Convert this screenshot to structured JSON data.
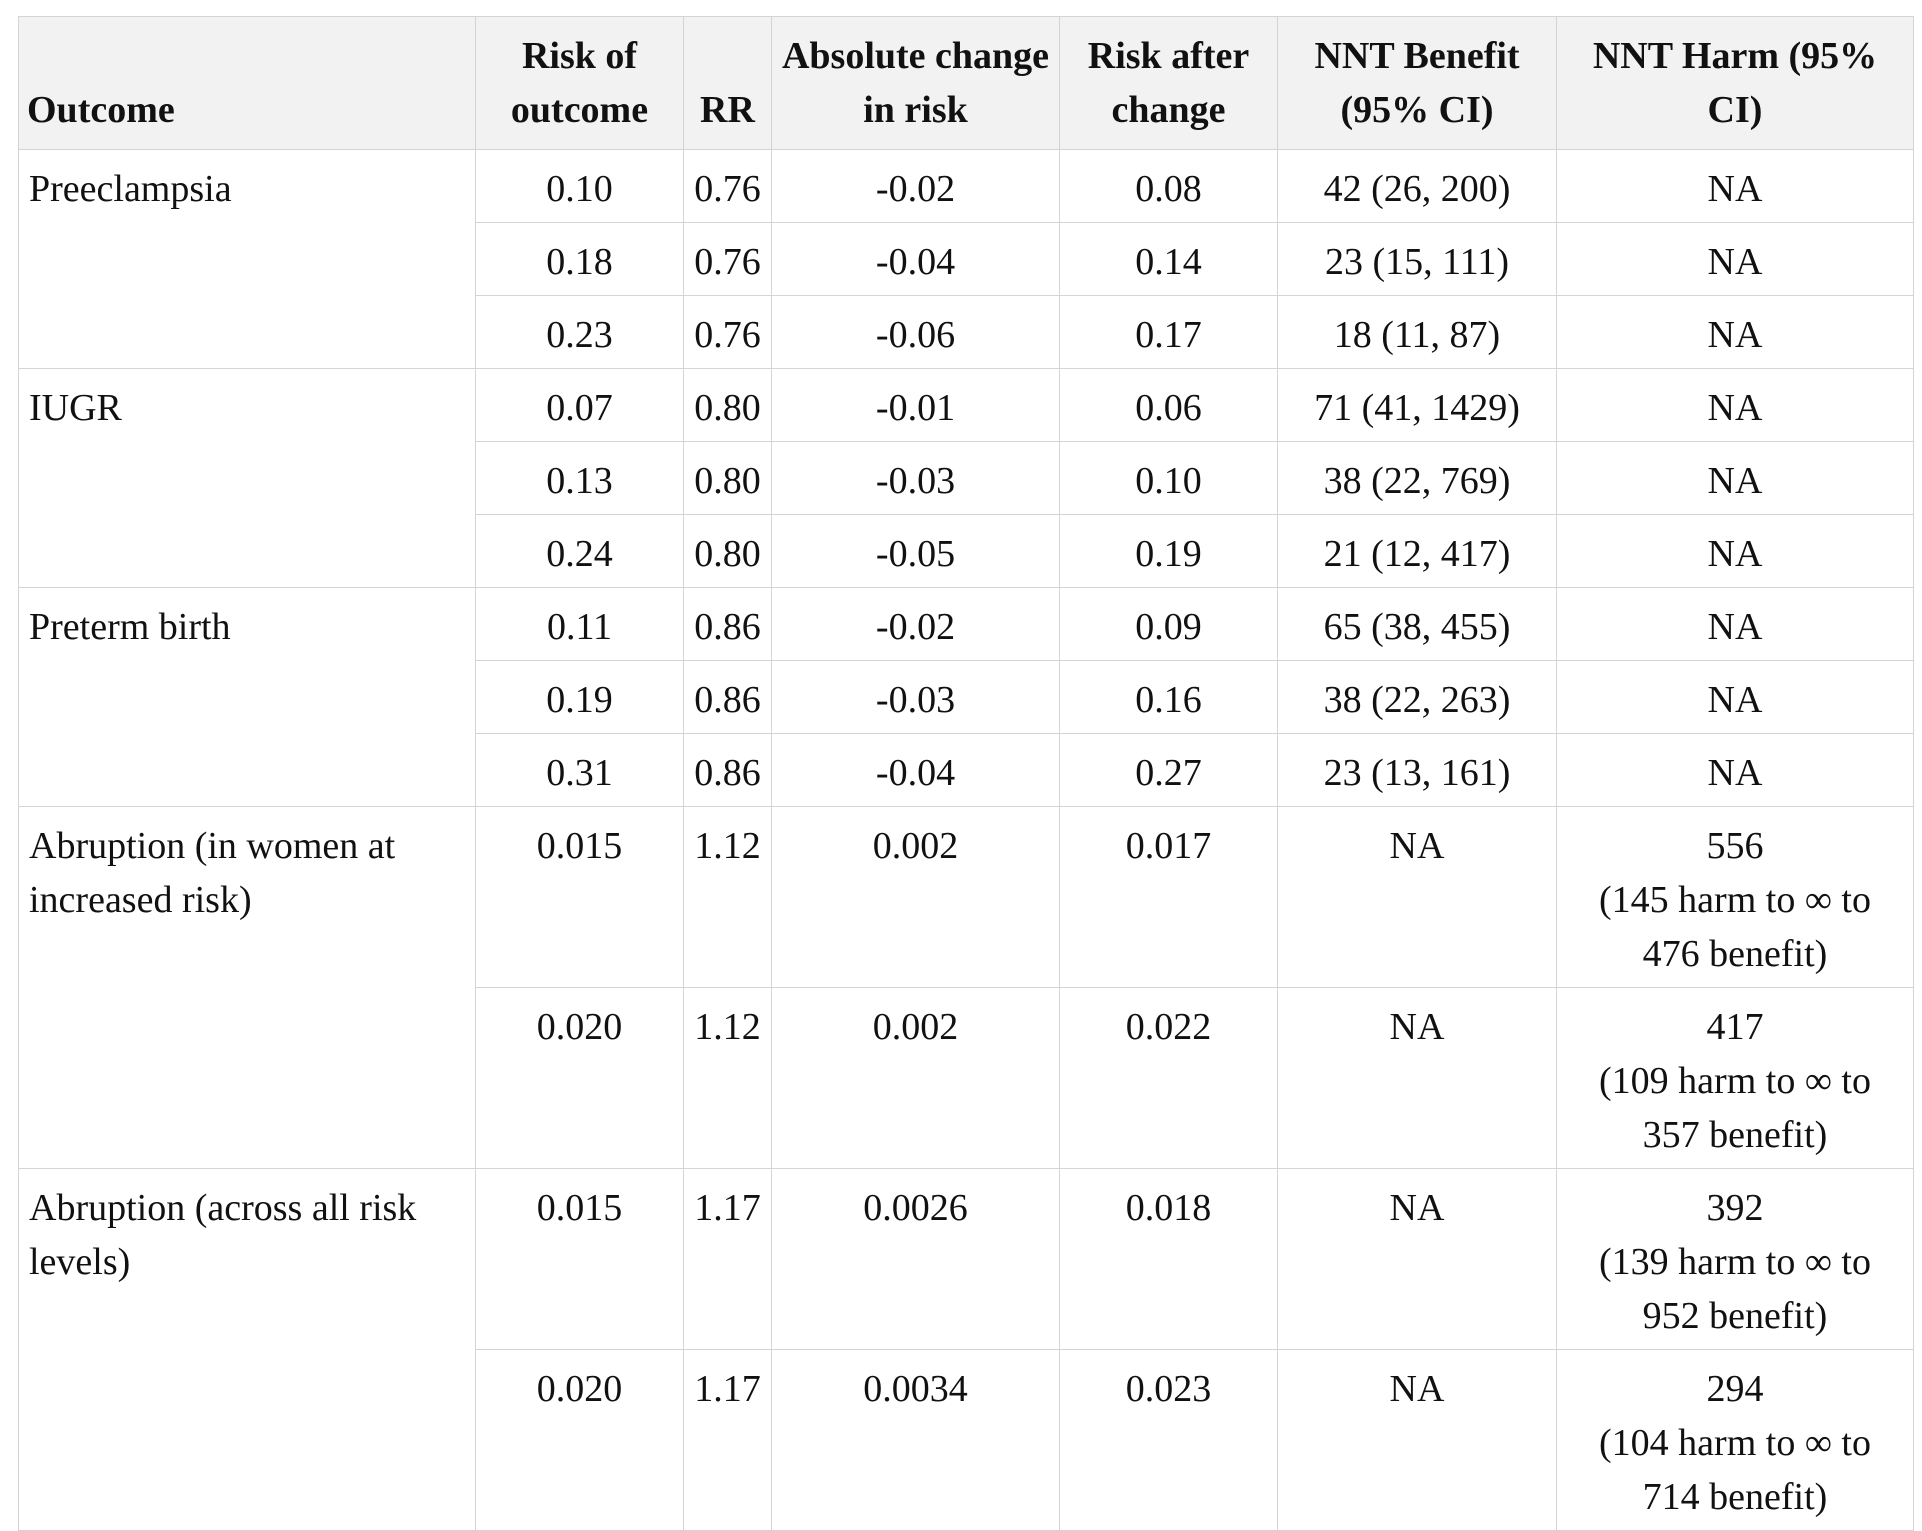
{
  "table": {
    "headers": [
      "Outcome",
      "Risk of outcome",
      "RR",
      "Absolute change in risk",
      "Risk after change",
      "NNT Benefit (95% CI)",
      "NNT Harm (95% CI)"
    ],
    "groups": [
      {
        "outcome": "Preeclampsia",
        "rows": [
          {
            "risk": "0.10",
            "rr": "0.76",
            "abs": "-0.02",
            "after": "0.08",
            "benefit": "42 (26, 200)",
            "harm": [
              "NA"
            ]
          },
          {
            "risk": "0.18",
            "rr": "0.76",
            "abs": "-0.04",
            "after": "0.14",
            "benefit": "23 (15, 111)",
            "harm": [
              "NA"
            ]
          },
          {
            "risk": "0.23",
            "rr": "0.76",
            "abs": "-0.06",
            "after": "0.17",
            "benefit": "18 (11, 87)",
            "harm": [
              "NA"
            ]
          }
        ]
      },
      {
        "outcome": "IUGR",
        "rows": [
          {
            "risk": "0.07",
            "rr": "0.80",
            "abs": "-0.01",
            "after": "0.06",
            "benefit": "71 (41, 1429)",
            "harm": [
              "NA"
            ]
          },
          {
            "risk": "0.13",
            "rr": "0.80",
            "abs": "-0.03",
            "after": "0.10",
            "benefit": "38 (22, 769)",
            "harm": [
              "NA"
            ]
          },
          {
            "risk": "0.24",
            "rr": "0.80",
            "abs": "-0.05",
            "after": "0.19",
            "benefit": "21 (12, 417)",
            "harm": [
              "NA"
            ]
          }
        ]
      },
      {
        "outcome": "Preterm birth",
        "rows": [
          {
            "risk": "0.11",
            "rr": "0.86",
            "abs": "-0.02",
            "after": "0.09",
            "benefit": "65 (38, 455)",
            "harm": [
              "NA"
            ]
          },
          {
            "risk": "0.19",
            "rr": "0.86",
            "abs": "-0.03",
            "after": "0.16",
            "benefit": "38 (22, 263)",
            "harm": [
              "NA"
            ]
          },
          {
            "risk": "0.31",
            "rr": "0.86",
            "abs": "-0.04",
            "after": "0.27",
            "benefit": "23 (13, 161)",
            "harm": [
              "NA"
            ]
          }
        ]
      },
      {
        "outcome": "Abruption (in women at increased risk)",
        "rows": [
          {
            "risk": "0.015",
            "rr": "1.12",
            "abs": "0.002",
            "after": "0.017",
            "benefit": "NA",
            "harm": [
              "556",
              "(145 harm to ∞ to",
              "476 benefit)"
            ]
          },
          {
            "risk": "0.020",
            "rr": "1.12",
            "abs": "0.002",
            "after": "0.022",
            "benefit": "NA",
            "harm": [
              "417",
              "(109 harm to ∞ to",
              "357 benefit)"
            ]
          }
        ]
      },
      {
        "outcome": "Abruption (across all risk levels)",
        "rows": [
          {
            "risk": "0.015",
            "rr": "1.17",
            "abs": "0.0026",
            "after": "0.018",
            "benefit": "NA",
            "harm": [
              "392",
              "(139 harm to ∞ to",
              "952 benefit)"
            ]
          },
          {
            "risk": "0.020",
            "rr": "1.17",
            "abs": "0.0034",
            "after": "0.023",
            "benefit": "NA",
            "harm": [
              "294",
              "(104 harm to ∞ to",
              "714 benefit)"
            ]
          }
        ]
      }
    ]
  }
}
